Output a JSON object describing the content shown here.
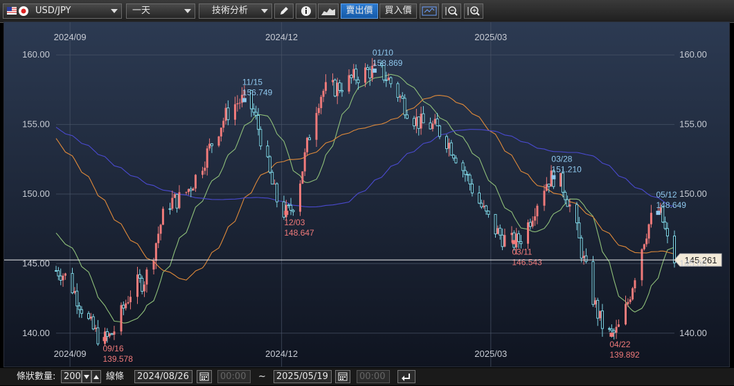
{
  "toolbar": {
    "symbol": "USD/JPY",
    "period": "一天",
    "tech": "技術分析",
    "sell": "賣出價",
    "buy": "買入價",
    "icons": [
      "pencil-icon",
      "info-icon",
      "area-chart-icon",
      "candlestick-icon",
      "zoom-out-icon",
      "zoom-in-icon"
    ]
  },
  "chart": {
    "x_labels": [
      "2024/09",
      "2024/12",
      "2025/03"
    ],
    "y_labels": [
      "160.00",
      "155.00",
      "150.00",
      "145.00",
      "140.00"
    ],
    "current_price": "145.261",
    "annotations": [
      {
        "date": "09/16",
        "price": "139.578",
        "kind": "low"
      },
      {
        "date": "11/15",
        "price": "156.749",
        "kind": "high"
      },
      {
        "date": "12/03",
        "price": "148.647",
        "kind": "low"
      },
      {
        "date": "01/10",
        "price": "158.869",
        "kind": "high"
      },
      {
        "date": "03/11",
        "price": "146.543",
        "kind": "low"
      },
      {
        "date": "03/28",
        "price": "151.210",
        "kind": "high"
      },
      {
        "date": "04/22",
        "price": "139.892",
        "kind": "low"
      },
      {
        "date": "05/12",
        "price": "148.649",
        "kind": "high"
      }
    ],
    "colors": {
      "up": "#f07a7a",
      "down": "#7fd6e6",
      "ma_short": "#8fc07a",
      "ma_mid": "#e08a3a",
      "ma_long": "#4a4ad0",
      "bg_top": "#2c3a52",
      "bg_bottom": "#0f1420"
    }
  },
  "chart_data": {
    "type": "candlestick",
    "x_range": [
      "2024/08/26",
      "2025/05/19"
    ],
    "ylim": [
      137.0,
      162.5
    ],
    "key_points": [
      {
        "x": "2024/08/26",
        "y": 144.5
      },
      {
        "x": "2024/09/16",
        "y": 139.578
      },
      {
        "x": "2024/10/01",
        "y": 143.6
      },
      {
        "x": "2024/10/15",
        "y": 149.5
      },
      {
        "x": "2024/11/15",
        "y": 156.749
      },
      {
        "x": "2024/12/03",
        "y": 148.647
      },
      {
        "x": "2024/12/20",
        "y": 157.5
      },
      {
        "x": "2025/01/10",
        "y": 158.869
      },
      {
        "x": "2025/02/01",
        "y": 155.0
      },
      {
        "x": "2025/03/11",
        "y": 146.543
      },
      {
        "x": "2025/03/28",
        "y": 151.21
      },
      {
        "x": "2025/04/22",
        "y": 139.892
      },
      {
        "x": "2025/05/12",
        "y": 148.649
      },
      {
        "x": "2025/05/19",
        "y": 145.261
      }
    ]
  },
  "bottom": {
    "count_label": "條狀數量:",
    "count_value": "200",
    "line_label": "線條",
    "start_date": "2024/08/26",
    "start_time": "00:00",
    "tilde": "~",
    "end_date": "2025/05/19",
    "end_time": "00:00"
  }
}
